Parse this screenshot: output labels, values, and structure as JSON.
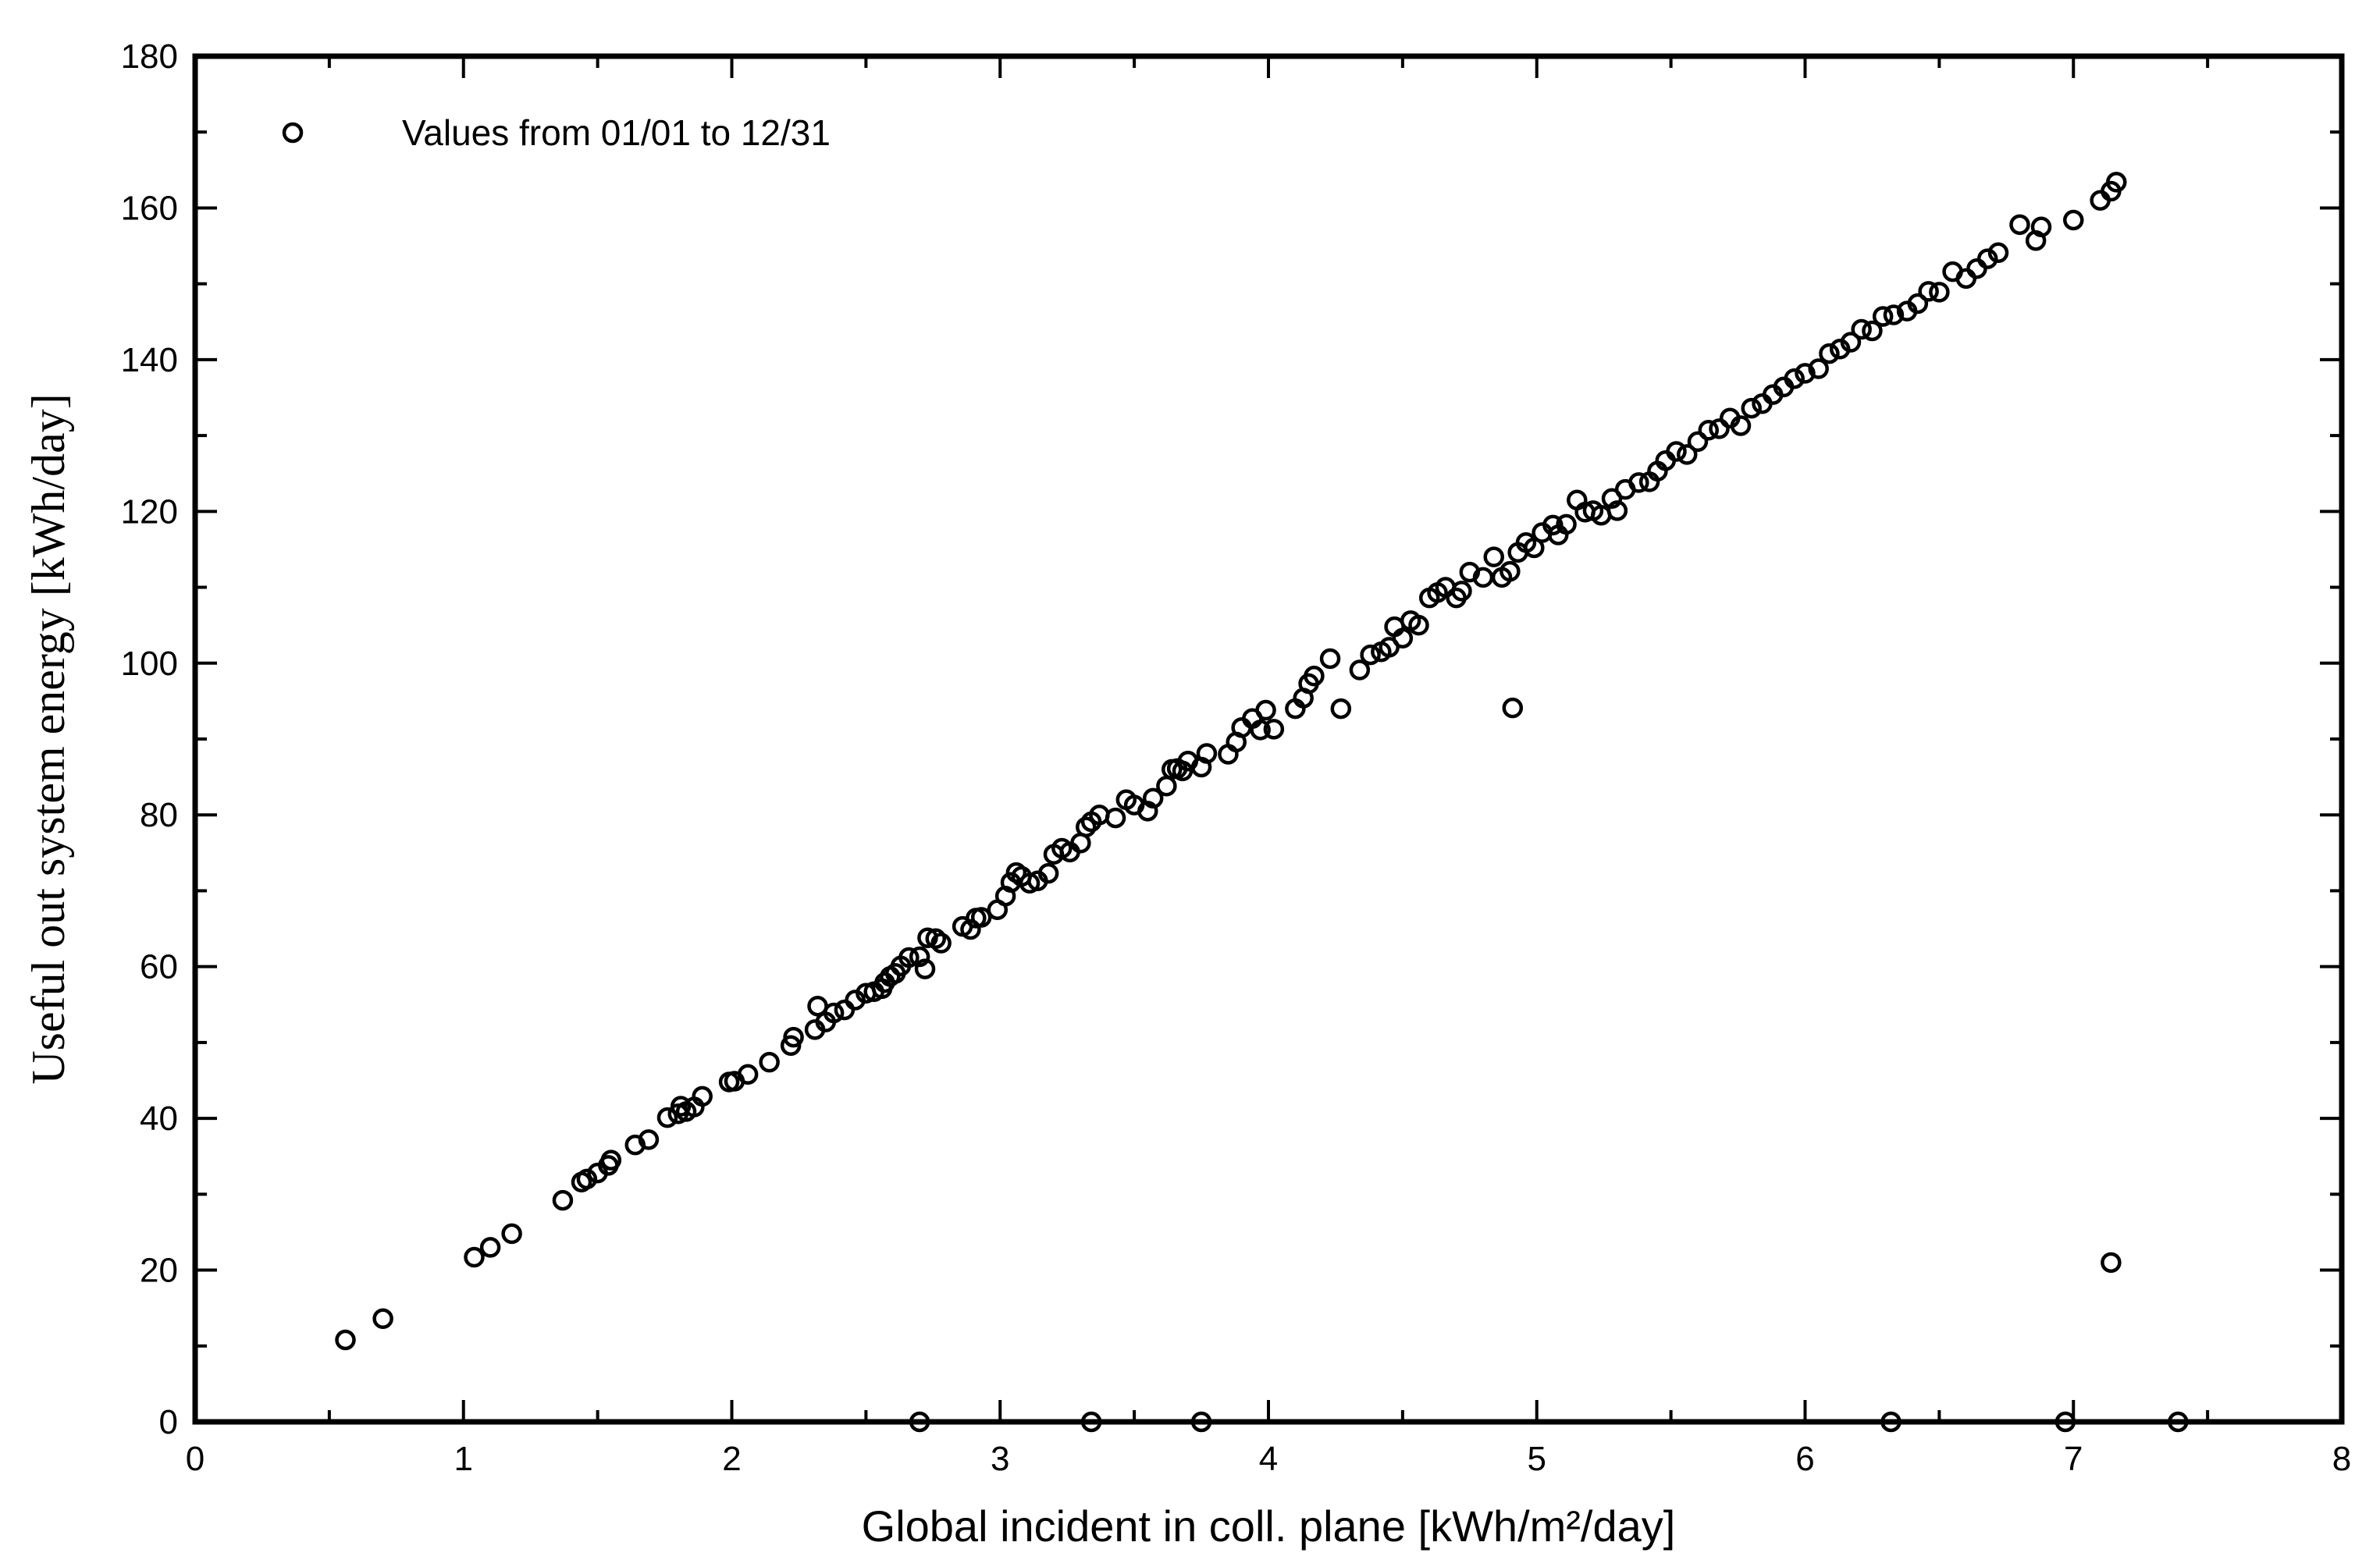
{
  "chart_data": {
    "type": "scatter",
    "title": "",
    "xlabel": "Global incident in coll. plane [kWh/m²/day]",
    "ylabel": "Useful out system energy [kWh/day]",
    "xlim": [
      0,
      8
    ],
    "ylim": [
      0,
      180
    ],
    "x_ticks": [
      0,
      1,
      2,
      3,
      4,
      5,
      6,
      7,
      8
    ],
    "y_ticks": [
      0,
      20,
      40,
      60,
      80,
      100,
      120,
      140,
      160,
      180
    ],
    "x_minor_step": 0.5,
    "y_minor_step": 10,
    "grid": false,
    "legend": {
      "position": "top-left",
      "entries": [
        "Values from 01/01 to 12/31"
      ]
    },
    "marker": "open-circle",
    "color": "#000000",
    "series": [
      {
        "name": "Values from 01/01 to 12/31",
        "x": [
          0.56,
          0.7,
          1.04,
          1.1,
          1.18,
          1.37,
          1.44,
          1.46,
          1.5,
          1.54,
          1.55,
          1.64,
          1.69,
          1.76,
          1.8,
          1.81,
          1.83,
          1.86,
          1.89,
          1.99,
          2.01,
          2.06,
          2.14,
          2.22,
          2.23,
          2.31,
          2.32,
          2.35,
          2.38,
          2.42,
          2.46,
          2.5,
          2.53,
          2.56,
          2.57,
          2.59,
          2.61,
          2.63,
          2.66,
          2.7,
          2.72,
          2.73,
          2.76,
          2.78,
          2.86,
          2.89,
          2.91,
          2.93,
          2.99,
          3.02,
          3.04,
          3.06,
          3.08,
          3.11,
          3.14,
          3.18,
          3.2,
          3.23,
          3.26,
          3.3,
          3.32,
          3.34,
          3.37,
          3.43,
          3.47,
          3.5,
          3.55,
          3.57,
          3.62,
          3.64,
          3.66,
          3.68,
          3.7,
          3.75,
          3.77,
          3.85,
          3.88,
          3.9,
          3.94,
          3.97,
          3.99,
          4.02,
          4.1,
          4.13,
          4.15,
          4.17,
          4.23,
          4.27,
          4.34,
          4.38,
          4.42,
          4.45,
          4.47,
          4.5,
          4.53,
          4.56,
          4.6,
          4.63,
          4.66,
          4.7,
          4.72,
          4.75,
          4.8,
          4.84,
          4.87,
          4.9,
          4.93,
          4.96,
          4.99,
          5.02,
          5.06,
          5.08,
          5.11,
          5.15,
          5.18,
          5.21,
          5.24,
          5.28,
          5.3,
          5.33,
          5.38,
          5.42,
          5.45,
          5.48,
          5.52,
          5.56,
          5.6,
          5.64,
          5.68,
          5.72,
          5.76,
          5.8,
          5.84,
          5.88,
          5.92,
          5.96,
          6.0,
          6.05,
          6.09,
          6.13,
          6.17,
          6.21,
          6.25,
          6.29,
          6.33,
          6.38,
          6.42,
          6.46,
          6.5,
          6.55,
          6.6,
          6.64,
          6.68,
          6.72,
          6.8,
          6.86,
          6.88,
          7.0,
          7.1,
          7.14,
          7.16,
          4.91,
          7.14,
          2.7,
          3.34,
          3.75,
          6.32,
          6.97,
          7.39
        ],
        "y": [
          10.8,
          13.6,
          21.7,
          23.0,
          24.8,
          29.2,
          31.6,
          32.0,
          32.8,
          33.8,
          34.5,
          36.5,
          37.2,
          40.1,
          40.6,
          41.6,
          40.9,
          41.5,
          42.9,
          44.8,
          44.9,
          45.8,
          47.4,
          49.6,
          50.7,
          51.7,
          54.8,
          52.7,
          53.9,
          54.3,
          55.6,
          56.5,
          56.7,
          57.1,
          57.9,
          58.7,
          59.1,
          60.1,
          61.2,
          61.3,
          59.7,
          63.8,
          63.7,
          63.1,
          65.3,
          64.9,
          66.4,
          66.5,
          67.5,
          69.3,
          71.1,
          72.4,
          71.9,
          71.0,
          71.3,
          72.3,
          74.8,
          75.6,
          75.1,
          76.3,
          78.4,
          79.1,
          80.0,
          79.6,
          82.0,
          81.3,
          80.5,
          82.2,
          83.8,
          86.0,
          86.1,
          85.8,
          87.1,
          86.3,
          88.1,
          88.0,
          89.6,
          91.5,
          92.7,
          91.2,
          93.8,
          91.3,
          94.0,
          95.4,
          97.3,
          98.3,
          100.6,
          94.0,
          99.1,
          101.1,
          101.5,
          102.1,
          104.8,
          103.3,
          105.6,
          105.0,
          108.6,
          109.3,
          110.0,
          108.6,
          109.5,
          112.0,
          111.3,
          114.0,
          111.3,
          112.1,
          114.6,
          115.9,
          115.2,
          117.2,
          118.2,
          116.9,
          118.3,
          121.5,
          119.9,
          120.1,
          119.5,
          121.7,
          120.1,
          122.9,
          123.8,
          123.9,
          125.3,
          126.7,
          127.9,
          127.5,
          129.2,
          130.7,
          130.9,
          132.3,
          131.3,
          133.6,
          134.2,
          135.4,
          136.4,
          137.5,
          138.2,
          138.8,
          140.8,
          141.4,
          142.3,
          144.0,
          143.8,
          145.7,
          145.9,
          146.4,
          147.4,
          149.0,
          148.9,
          151.6,
          150.7,
          152.0,
          153.3,
          154.1,
          157.8,
          155.7,
          157.5,
          158.4,
          161.0,
          162.2,
          163.4,
          94.1,
          21.0,
          0,
          0,
          0,
          0,
          0,
          0
        ]
      }
    ]
  }
}
